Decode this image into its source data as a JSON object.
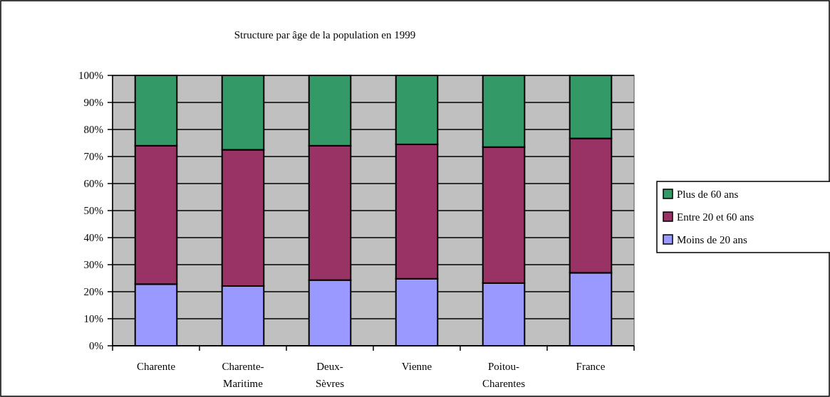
{
  "chart_data": {
    "type": "bar",
    "title": "Structure par âge de la population en 1999",
    "categories": [
      "Charente",
      "Charente-Maritime",
      "Deux-Sèvres",
      "Vienne",
      "Poitou-Charentes",
      "France"
    ],
    "stacked": true,
    "series": [
      {
        "name": "Moins de 20 ans",
        "color": "#9999ff",
        "values": [
          22.8,
          22.1,
          24.3,
          24.8,
          23.2,
          27.0
        ]
      },
      {
        "name": "Entre 20 et 60 ans",
        "color": "#993366",
        "values": [
          51.2,
          50.4,
          49.7,
          49.7,
          50.3,
          49.7
        ]
      },
      {
        "name": "Plus de 60 ans",
        "color": "#339966",
        "values": [
          26.0,
          27.5,
          26.0,
          25.5,
          26.5,
          23.3
        ]
      }
    ],
    "ylim": [
      0,
      100
    ],
    "yticks": [
      {
        "value": 0,
        "label": "0%"
      },
      {
        "value": 10,
        "label": "10%"
      },
      {
        "value": 20,
        "label": "20%"
      },
      {
        "value": 30,
        "label": "30%"
      },
      {
        "value": 40,
        "label": "40%"
      },
      {
        "value": 50,
        "label": "50%"
      },
      {
        "value": 60,
        "label": "60%"
      },
      {
        "value": 70,
        "label": "70%"
      },
      {
        "value": 80,
        "label": "80%"
      },
      {
        "value": 90,
        "label": "90%"
      },
      {
        "value": 100,
        "label": "100%"
      }
    ],
    "grid": "y",
    "legend": "right"
  }
}
